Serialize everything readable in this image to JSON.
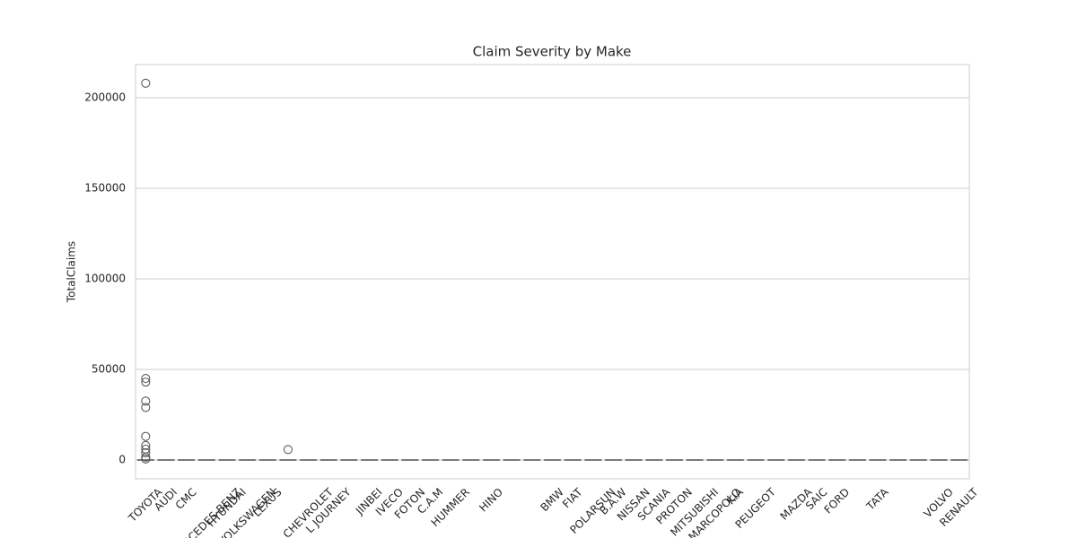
{
  "chart_data": {
    "type": "box",
    "title": "Claim Severity by Make",
    "y_label": "TotalClaims",
    "categories": [
      "TOYOTA",
      "AUDI",
      "CMC",
      "MERCEDES-BENZ",
      "HYUNDAI",
      "VOLKSWAGEN",
      "LEXUS",
      null,
      "CHEVROLET",
      "L JOURNEY",
      null,
      "JINBEI",
      "IVECO",
      "FOTON",
      "C.A.M",
      "HUMMER",
      null,
      "HINO",
      null,
      null,
      "BMW",
      "FIAT",
      "POLARSUN",
      "B.A.W",
      "NISSAN",
      "SCANIA",
      "PROTON",
      "MITSUBISHI",
      "MARCOPOLO",
      "KIA",
      "PEUGEOT",
      null,
      "MAZDA",
      "SAIC",
      "FORD",
      null,
      "TATA",
      null,
      null,
      "VOLVO",
      "RENAULT"
    ],
    "median": [
      0,
      0,
      0,
      0,
      0,
      0,
      0,
      0,
      0,
      0,
      0,
      0,
      0,
      0,
      0,
      0,
      0,
      0,
      0,
      0,
      0,
      0,
      0,
      0,
      0,
      0,
      0,
      0,
      0,
      0,
      0,
      0,
      0,
      0,
      0,
      0,
      0,
      0,
      0,
      0,
      0
    ],
    "q1": [
      0,
      0,
      0,
      0,
      0,
      0,
      0,
      0,
      0,
      0,
      0,
      0,
      0,
      0,
      0,
      0,
      0,
      0,
      0,
      0,
      0,
      0,
      0,
      0,
      0,
      0,
      0,
      0,
      0,
      0,
      0,
      0,
      0,
      0,
      0,
      0,
      0,
      0,
      0,
      0,
      0
    ],
    "q3": [
      0,
      0,
      0,
      0,
      0,
      0,
      0,
      0,
      0,
      0,
      0,
      0,
      0,
      0,
      0,
      0,
      0,
      0,
      0,
      0,
      0,
      0,
      0,
      0,
      0,
      0,
      0,
      0,
      0,
      0,
      0,
      0,
      0,
      0,
      0,
      0,
      0,
      0,
      0,
      0,
      0
    ],
    "outliers": [
      [
        208000,
        45000,
        43000,
        32500,
        29000,
        13000,
        8000,
        6000,
        4000,
        1500,
        500
      ],
      [],
      [],
      [],
      [],
      [],
      [],
      [
        5800
      ],
      [],
      [],
      [],
      [],
      [],
      [],
      [],
      [],
      [],
      [],
      [],
      [],
      [],
      [],
      [],
      [],
      [],
      [],
      [],
      [],
      [],
      [],
      [],
      [],
      [],
      [],
      [],
      [],
      [],
      [],
      [],
      [],
      []
    ],
    "color": "#5a5a5a",
    "ylim": [
      -10400,
      218300
    ],
    "yticks": [
      0,
      50000,
      100000,
      150000,
      200000
    ],
    "grid": true
  }
}
